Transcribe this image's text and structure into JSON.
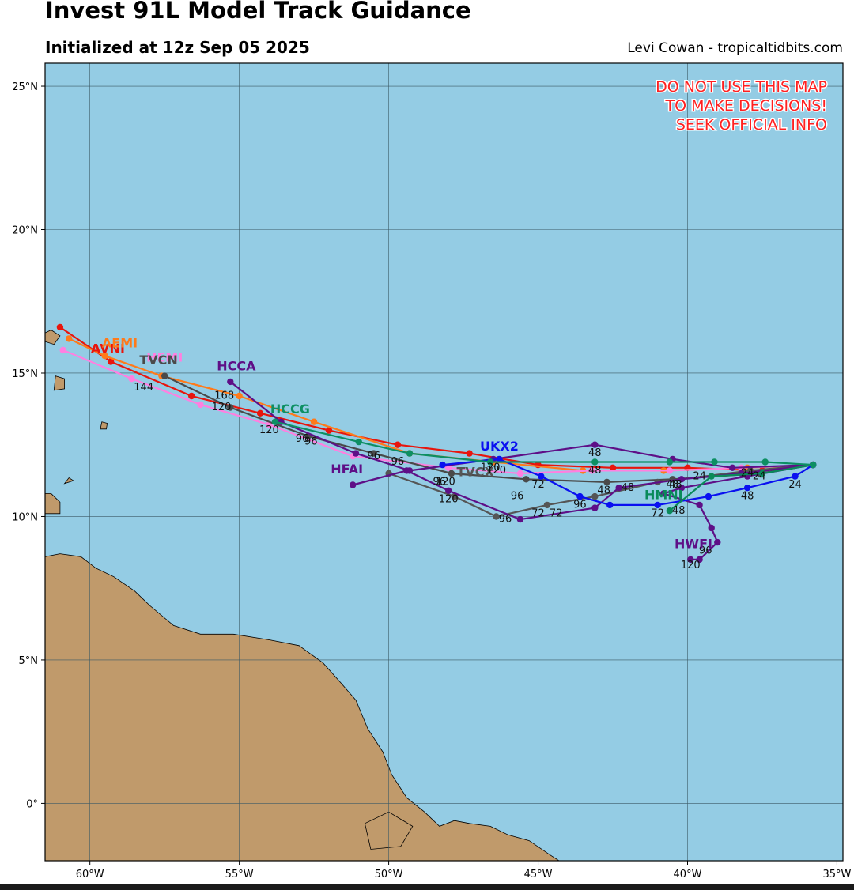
{
  "header": {
    "title": "Invest 91L Model Track Guidance",
    "subtitle": "Initialized at 12z Sep 05 2025",
    "credit": "Levi Cowan - tropicaltidbits.com"
  },
  "warning": [
    "DO NOT USE THIS MAP",
    "TO MAKE DECISIONS!",
    "SEEK OFFICIAL INFO"
  ],
  "colors": {
    "ocean": "#94cce4",
    "land": "#c09a6b",
    "grid": "#3c5a66"
  },
  "map": {
    "lon_range": [
      -61.5,
      -34.8
    ],
    "lat_range": [
      -2,
      25.8
    ],
    "lon_ticks": [
      {
        "v": -60,
        "label": "60°W"
      },
      {
        "v": -55,
        "label": "55°W"
      },
      {
        "v": -50,
        "label": "50°W"
      },
      {
        "v": -45,
        "label": "45°W"
      },
      {
        "v": -40,
        "label": "40°W"
      },
      {
        "v": -35,
        "label": "35°W"
      }
    ],
    "lat_ticks": [
      {
        "v": 25,
        "label": "25°N"
      },
      {
        "v": 20,
        "label": "20°N"
      },
      {
        "v": 15,
        "label": "15°N"
      },
      {
        "v": 10,
        "label": "10°N"
      },
      {
        "v": 5,
        "label": "5°N"
      },
      {
        "v": 0,
        "label": "0°"
      }
    ],
    "land": [
      {
        "name": "south-america-coast",
        "points": [
          [
            -61.5,
            8.6
          ],
          [
            -61.0,
            8.7
          ],
          [
            -60.3,
            8.6
          ],
          [
            -59.8,
            8.2
          ],
          [
            -59.2,
            7.9
          ],
          [
            -58.5,
            7.4
          ],
          [
            -58.0,
            6.9
          ],
          [
            -57.2,
            6.2
          ],
          [
            -56.3,
            5.9
          ],
          [
            -55.2,
            5.9
          ],
          [
            -54.0,
            5.7
          ],
          [
            -53.0,
            5.5
          ],
          [
            -52.2,
            4.9
          ],
          [
            -51.6,
            4.2
          ],
          [
            -51.1,
            3.6
          ],
          [
            -50.7,
            2.6
          ],
          [
            -50.2,
            1.8
          ],
          [
            -49.9,
            1.0
          ],
          [
            -49.4,
            0.2
          ],
          [
            -48.8,
            -0.3
          ],
          [
            -48.3,
            -0.8
          ],
          [
            -47.8,
            -0.6
          ],
          [
            -47.3,
            -0.7
          ],
          [
            -46.6,
            -0.8
          ],
          [
            -46.0,
            -1.1
          ],
          [
            -45.3,
            -1.3
          ],
          [
            -44.6,
            -1.8
          ],
          [
            -44.3,
            -2.0
          ],
          [
            -61.5,
            -2.0
          ]
        ]
      },
      {
        "name": "trinidad",
        "points": [
          [
            -61.5,
            10.1
          ],
          [
            -61.0,
            10.1
          ],
          [
            -61.0,
            10.5
          ],
          [
            -61.3,
            10.8
          ],
          [
            -61.5,
            10.8
          ]
        ]
      },
      {
        "name": "barbados",
        "points": [
          [
            -59.65,
            13.05
          ],
          [
            -59.45,
            13.05
          ],
          [
            -59.42,
            13.25
          ],
          [
            -59.6,
            13.3
          ]
        ]
      },
      {
        "name": "guadeloupe",
        "points": [
          [
            -61.5,
            16.1
          ],
          [
            -61.2,
            16.0
          ],
          [
            -61.0,
            16.3
          ],
          [
            -61.3,
            16.5
          ],
          [
            -61.5,
            16.4
          ]
        ]
      },
      {
        "name": "martinique",
        "points": [
          [
            -61.2,
            14.4
          ],
          [
            -60.85,
            14.45
          ],
          [
            -60.85,
            14.8
          ],
          [
            -61.15,
            14.9
          ]
        ]
      },
      {
        "name": "tobago",
        "points": [
          [
            -60.85,
            11.15
          ],
          [
            -60.55,
            11.25
          ],
          [
            -60.7,
            11.35
          ]
        ]
      },
      {
        "name": "marajo-island",
        "points": [
          [
            -50.8,
            -0.7
          ],
          [
            -50.0,
            -0.3
          ],
          [
            -49.2,
            -0.8
          ],
          [
            -49.6,
            -1.5
          ],
          [
            -50.6,
            -1.6
          ]
        ]
      }
    ]
  },
  "chart_data": {
    "type": "scatter",
    "series": [
      {
        "name": "AVNI",
        "color": "#e8150d",
        "points": [
          [
            -35.8,
            11.8
          ],
          [
            -37.5,
            11.6
          ],
          [
            -40.0,
            11.7
          ],
          [
            -42.5,
            11.7
          ],
          [
            -45.0,
            11.8
          ],
          [
            -47.3,
            12.2
          ],
          [
            -49.7,
            12.5
          ],
          [
            -52.0,
            13.0
          ],
          [
            -54.3,
            13.6
          ],
          [
            -56.6,
            14.2
          ],
          [
            -59.3,
            15.4
          ],
          [
            -61.0,
            16.6
          ]
        ],
        "labels": [],
        "name_at": [
          -59.4,
          15.7
        ]
      },
      {
        "name": "AEMI",
        "color": "#ff7a1a",
        "points": [
          [
            -35.8,
            11.8
          ],
          [
            -38.0,
            11.7
          ],
          [
            -40.8,
            11.6
          ],
          [
            -43.5,
            11.6
          ],
          [
            -46.5,
            11.9
          ],
          [
            -49.3,
            12.2
          ],
          [
            -52.5,
            13.3
          ],
          [
            -55.0,
            14.2
          ],
          [
            -57.6,
            14.9
          ],
          [
            -59.5,
            15.6
          ],
          [
            -60.7,
            16.2
          ]
        ],
        "labels": [],
        "name_at": [
          -59.0,
          15.9
        ]
      },
      {
        "name": "HEMI",
        "color": "#ff7fe0",
        "points": [
          [
            -35.8,
            11.8
          ],
          [
            -38.2,
            11.7
          ],
          [
            -40.6,
            11.6
          ],
          [
            -43.2,
            11.6
          ],
          [
            -45.6,
            11.5
          ],
          [
            -48.0,
            11.7
          ],
          [
            -51.2,
            12.1
          ],
          [
            -54.0,
            13.2
          ],
          [
            -56.3,
            13.9
          ],
          [
            -58.6,
            14.8
          ],
          [
            -60.9,
            15.8
          ]
        ],
        "labels": [],
        "name_at": [
          -57.5,
          15.4
        ]
      },
      {
        "name": "TVCN",
        "color": "#4a4a4a",
        "points": [
          [
            -35.8,
            11.8
          ],
          [
            -37.6,
            11.5
          ],
          [
            -40.5,
            11.3
          ],
          [
            -42.7,
            11.2
          ],
          [
            -45.4,
            11.3
          ],
          [
            -47.9,
            11.5
          ],
          [
            -50.5,
            12.2
          ],
          [
            -52.7,
            12.8
          ],
          [
            -55.3,
            13.8
          ],
          [
            -57.5,
            14.9
          ]
        ],
        "labels": [
          {
            "at": [
              -37.6,
              11.3
            ],
            "t": "24"
          },
          {
            "at": [
              -40.5,
              11.0
            ],
            "t": "48"
          },
          {
            "at": [
              -44.4,
              10.0
            ],
            "t": "72"
          },
          {
            "at": [
              -48.3,
              11.1
            ],
            "t": "96"
          },
          {
            "at": [
              -52.6,
              12.5
            ],
            "t": "96"
          },
          {
            "at": [
              -55.6,
              13.7
            ],
            "t": "120"
          },
          {
            "at": [
              -58.2,
              14.4
            ],
            "t": "144"
          }
        ],
        "name_at": [
          -57.7,
          15.3
        ]
      },
      {
        "name": "TVCX",
        "color": "#555555",
        "points": [
          [
            -35.8,
            11.8
          ],
          [
            -37.9,
            11.6
          ],
          [
            -41.0,
            11.2
          ],
          [
            -43.1,
            10.7
          ],
          [
            -44.7,
            10.4
          ],
          [
            -46.4,
            10.0
          ],
          [
            -47.8,
            10.7
          ],
          [
            -50.0,
            11.5
          ]
        ],
        "labels": [
          {
            "at": [
              -38.0,
              11.4
            ],
            "t": "24"
          },
          {
            "at": [
              -42.0,
              10.9
            ],
            "t": "48"
          },
          {
            "at": [
              -45.0,
              10.0
            ],
            "t": "72"
          },
          {
            "at": [
              -45.7,
              10.6
            ],
            "t": "96"
          },
          {
            "at": [
              -48.1,
              11.1
            ],
            "t": "120"
          }
        ],
        "name_at": [
          -47.1,
          11.4
        ]
      },
      {
        "name": "HCCA",
        "color": "#5e0f87",
        "points": [
          [
            -35.8,
            11.8
          ],
          [
            -38.5,
            11.7
          ],
          [
            -40.5,
            12.0
          ],
          [
            -43.1,
            12.5
          ],
          [
            -46.5,
            12.0
          ],
          [
            -49.3,
            11.6
          ],
          [
            -51.1,
            12.2
          ],
          [
            -53.6,
            13.3
          ],
          [
            -55.3,
            14.7
          ]
        ],
        "labels": [
          {
            "at": [
              -43.1,
              12.1
            ],
            "t": "48"
          },
          {
            "at": [
              -46.4,
              11.5
            ],
            "t": "120"
          },
          {
            "at": [
              -50.5,
              12.0
            ],
            "t": "96"
          },
          {
            "at": [
              -55.5,
              14.1
            ],
            "t": "168"
          }
        ],
        "name_at": [
          -55.1,
          15.1
        ]
      },
      {
        "name": "HFAI",
        "color": "#5e0f87",
        "points": [
          [
            -35.8,
            11.8
          ],
          [
            -38.2,
            11.5
          ],
          [
            -40.2,
            11.3
          ],
          [
            -42.3,
            11.0
          ],
          [
            -43.1,
            10.3
          ],
          [
            -45.6,
            9.9
          ],
          [
            -48.0,
            10.9
          ],
          [
            -49.4,
            11.6
          ],
          [
            -51.2,
            11.1
          ]
        ],
        "labels": [
          {
            "at": [
              -40.4,
              11.0
            ],
            "t": "48"
          },
          {
            "at": [
              -42.8,
              10.8
            ],
            "t": "48"
          },
          {
            "at": [
              -46.1,
              9.8
            ],
            "t": "96"
          },
          {
            "at": [
              -48.0,
              10.5
            ],
            "t": "120"
          }
        ],
        "name_at": [
          -51.4,
          11.5
        ]
      },
      {
        "name": "HWFI",
        "color": "#5e0f87",
        "points": [
          [
            -35.8,
            11.8
          ],
          [
            -38.0,
            11.4
          ],
          [
            -40.2,
            11.0
          ],
          [
            -40.8,
            10.8
          ],
          [
            -39.6,
            10.4
          ],
          [
            -39.2,
            9.6
          ],
          [
            -39.0,
            9.1
          ],
          [
            -39.6,
            8.5
          ],
          [
            -39.9,
            8.5
          ]
        ],
        "labels": [
          {
            "at": [
              -39.4,
              8.7
            ],
            "t": "96"
          },
          {
            "at": [
              -39.9,
              8.2
            ],
            "t": "120"
          }
        ],
        "name_at": [
          -39.8,
          8.9
        ]
      },
      {
        "name": "UKX2",
        "color": "#0a10f0",
        "points": [
          [
            -35.8,
            11.8
          ],
          [
            -36.4,
            11.4
          ],
          [
            -38.0,
            11.0
          ],
          [
            -39.3,
            10.7
          ],
          [
            -41.0,
            10.4
          ],
          [
            -42.6,
            10.4
          ],
          [
            -43.6,
            10.7
          ],
          [
            -44.9,
            11.4
          ],
          [
            -46.3,
            12.0
          ],
          [
            -48.2,
            11.8
          ]
        ],
        "labels": [
          {
            "at": [
              -36.4,
              11.0
            ],
            "t": "24"
          },
          {
            "at": [
              -38.0,
              10.6
            ],
            "t": "48"
          },
          {
            "at": [
              -41.0,
              10.0
            ],
            "t": "72"
          },
          {
            "at": [
              -43.6,
              10.3
            ],
            "t": "96"
          },
          {
            "at": [
              -46.6,
              11.6
            ],
            "t": "120"
          },
          {
            "at": [
              -45.0,
              11.0
            ],
            "t": "72"
          }
        ],
        "name_at": [
          -46.3,
          12.3
        ]
      },
      {
        "name": "HMNI",
        "color": "#0a8a5a",
        "points": [
          [
            -35.8,
            11.8
          ],
          [
            -37.5,
            11.5
          ],
          [
            -39.2,
            11.4
          ],
          [
            -40.6,
            10.2
          ]
        ],
        "labels": [
          {
            "at": [
              -39.6,
              11.3
            ],
            "t": "24"
          },
          {
            "at": [
              -40.3,
              10.1
            ],
            "t": "48"
          }
        ],
        "name_at": [
          -40.8,
          10.6
        ]
      },
      {
        "name": "HCCG",
        "color": "#0d8f63",
        "points": [
          [
            -35.8,
            11.8
          ],
          [
            -37.4,
            11.9
          ],
          [
            -39.1,
            11.9
          ],
          [
            -40.6,
            11.9
          ],
          [
            -43.1,
            11.9
          ],
          [
            -46.6,
            11.9
          ],
          [
            -49.3,
            12.2
          ],
          [
            -51.0,
            12.6
          ],
          [
            -53.8,
            13.3
          ]
        ],
        "labels": [
          {
            "at": [
              -43.1,
              11.5
            ],
            "t": "48"
          },
          {
            "at": [
              -49.7,
              11.8
            ],
            "t": "96"
          },
          {
            "at": [
              -52.9,
              12.6
            ],
            "t": "96"
          },
          {
            "at": [
              -54.0,
              12.9
            ],
            "t": "120"
          }
        ],
        "name_at": [
          -53.3,
          13.6
        ]
      }
    ]
  }
}
